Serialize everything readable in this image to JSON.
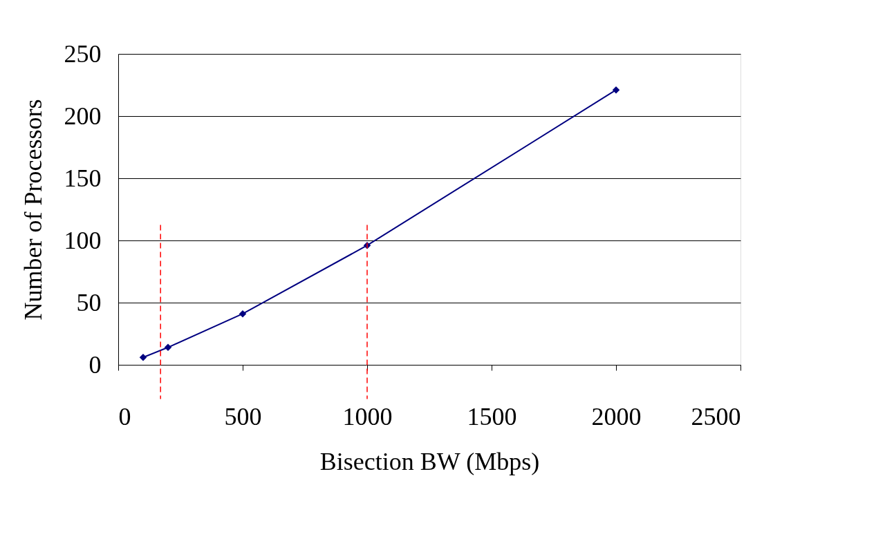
{
  "chart_data": {
    "type": "line",
    "xlabel": "Bisection BW (Mbps)",
    "ylabel": "Number of Processors",
    "x": [
      100,
      200,
      500,
      1000,
      2000
    ],
    "series": [
      {
        "color": "#000080",
        "values": [
          6,
          14,
          41,
          96,
          221
        ]
      }
    ],
    "xlim": [
      0,
      2500
    ],
    "xticks": [
      0,
      500,
      1000,
      1500,
      2000,
      2500
    ],
    "ylim": [
      0,
      250
    ],
    "yticks": [
      0,
      50,
      100,
      150,
      200,
      250
    ],
    "grid": "y",
    "marker": "diamond",
    "line_style": "solid",
    "ref_lines": [
      {
        "axis": "x",
        "value": 170,
        "color": "#ff0000",
        "line_style": "dashed"
      },
      {
        "axis": "x",
        "value": 1000,
        "color": "#ff0000",
        "line_style": "dashed"
      }
    ]
  }
}
